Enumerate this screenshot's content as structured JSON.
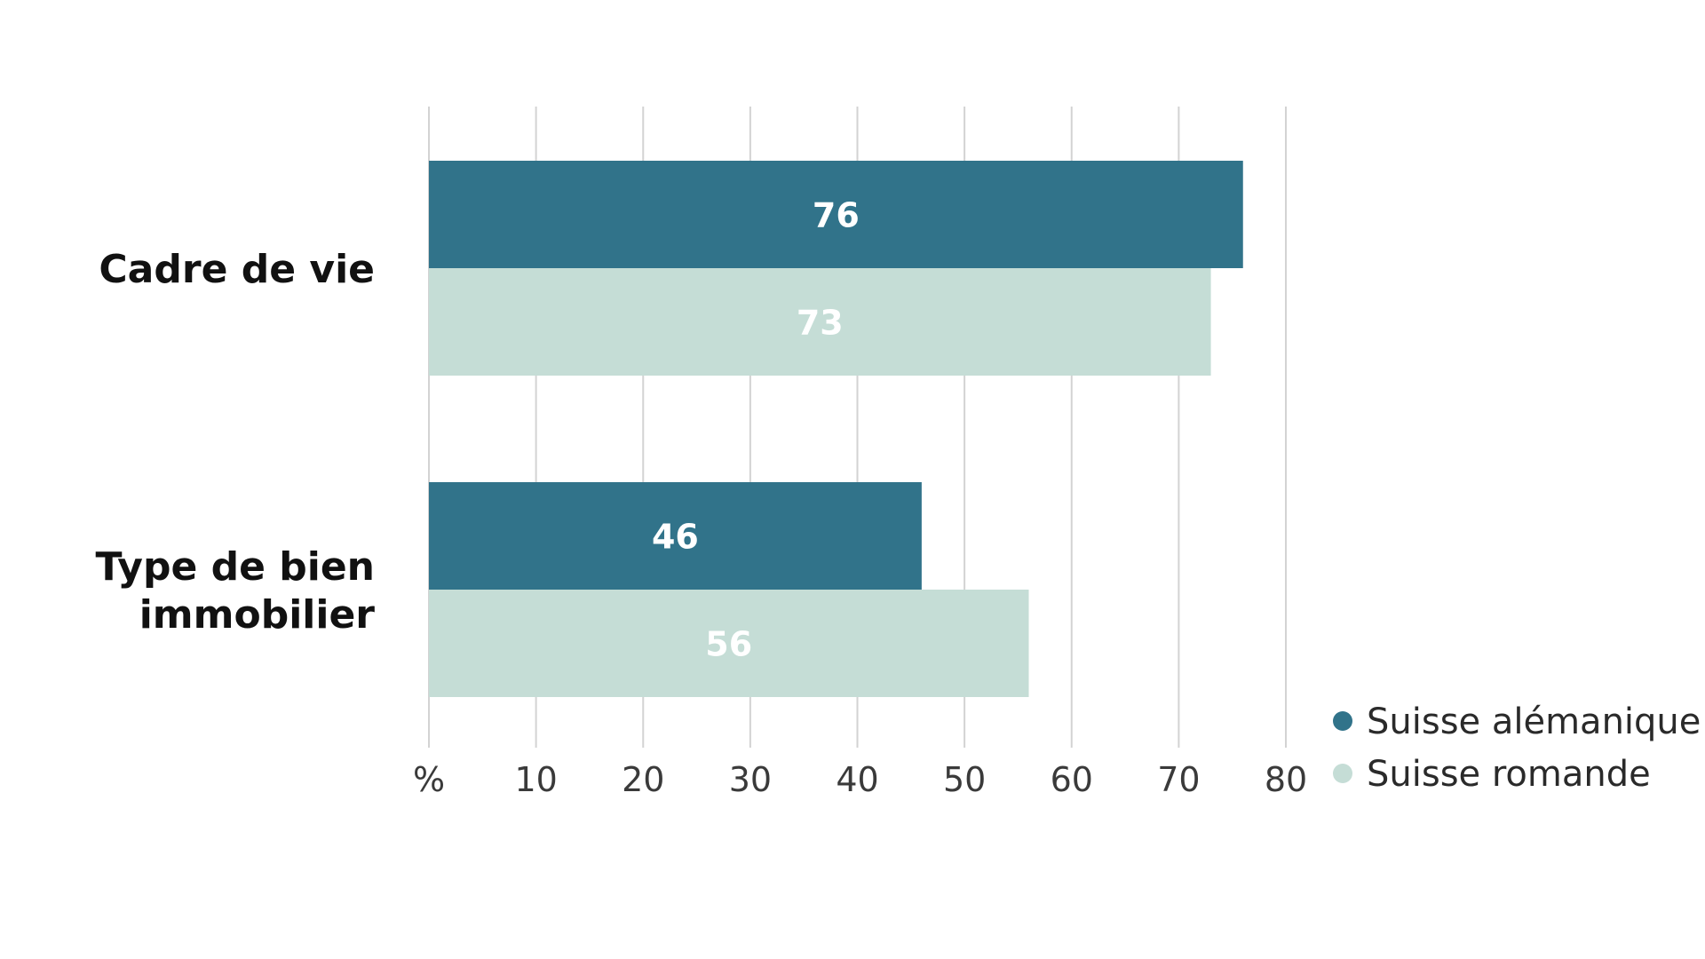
{
  "chart_data": {
    "type": "bar",
    "orientation": "horizontal",
    "title": "",
    "xlabel": "",
    "ylabel": "",
    "categories": [
      [
        "Cadre de vie"
      ],
      [
        "Type de bien",
        "immobilier"
      ]
    ],
    "series": [
      {
        "name": "Suisse alémanique",
        "color": "#31738a",
        "values": [
          76,
          46
        ]
      },
      {
        "name": "Suisse romande",
        "color": "#c5ddd6",
        "values": [
          73,
          56
        ]
      }
    ],
    "xlim": [
      0,
      80
    ],
    "ticks": [
      {
        "value": 0,
        "label": "%"
      },
      {
        "value": 10,
        "label": "10"
      },
      {
        "value": 20,
        "label": "20"
      },
      {
        "value": 30,
        "label": "30"
      },
      {
        "value": 40,
        "label": "40"
      },
      {
        "value": 50,
        "label": "50"
      },
      {
        "value": 60,
        "label": "60"
      },
      {
        "value": 70,
        "label": "70"
      },
      {
        "value": 80,
        "label": "80"
      }
    ],
    "grid": true,
    "legend_position": "bottom-right"
  }
}
